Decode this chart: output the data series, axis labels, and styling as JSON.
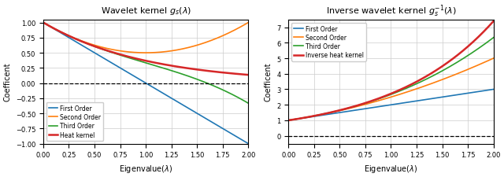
{
  "xlim": [
    0,
    2
  ],
  "x_ticks": [
    0.0,
    0.25,
    0.5,
    0.75,
    1.0,
    1.25,
    1.5,
    1.75,
    2.0
  ],
  "left_ylim": [
    -1.0,
    1.05
  ],
  "right_ylim": [
    -0.5,
    7.5
  ],
  "left_title": "Wavelet kernel $g_s(\\lambda)$",
  "right_title": "Inverse wavelet kernel $g_s^{-1}(\\lambda)$",
  "xlabel": "Eigenvalue($\\lambda$)",
  "ylabel": "Coefficent",
  "colors": {
    "first": "#1f77b4",
    "second": "#ff7f0e",
    "third": "#2ca02c",
    "heat": "#d62728"
  },
  "legend_left": [
    "First Order",
    "Second Order",
    "Third Order",
    "Heat kernel"
  ],
  "legend_right": [
    "First Order",
    "Second Order",
    "Third Order",
    "Inverse heat kernel"
  ],
  "heat_kernel_s": 1.0,
  "background_color": "#ffffff",
  "grid_color": "#cccccc"
}
